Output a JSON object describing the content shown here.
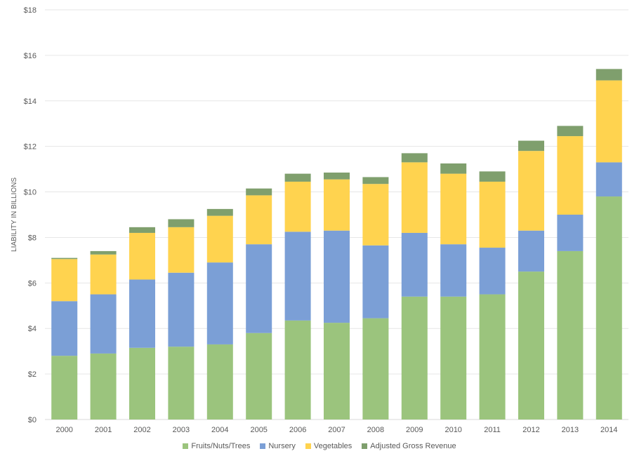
{
  "chart_data": {
    "type": "bar",
    "stacked": true,
    "title": "",
    "xlabel": "",
    "ylabel": "LIABILITY IN BILLIONS",
    "ylim": [
      0,
      18
    ],
    "y_ticks": [
      0,
      2,
      4,
      6,
      8,
      10,
      12,
      14,
      16,
      18
    ],
    "y_tick_labels": [
      "$0",
      "$2",
      "$4",
      "$6",
      "$8",
      "$10",
      "$12",
      "$14",
      "$16",
      "$18"
    ],
    "grid": true,
    "legend_position": "bottom",
    "categories": [
      "2000",
      "2001",
      "2002",
      "2003",
      "2004",
      "2005",
      "2006",
      "2007",
      "2008",
      "2009",
      "2010",
      "2011",
      "2012",
      "2013",
      "2014"
    ],
    "series": [
      {
        "name": "Fruits/Nuts/Trees",
        "color": "#9BC47D",
        "values": [
          2.8,
          2.9,
          3.15,
          3.2,
          3.3,
          3.8,
          4.35,
          4.25,
          4.45,
          5.4,
          5.4,
          5.5,
          6.5,
          7.4,
          9.8
        ]
      },
      {
        "name": "Nursery",
        "color": "#7B9FD6",
        "values": [
          2.4,
          2.6,
          3.0,
          3.25,
          3.6,
          3.9,
          3.9,
          4.05,
          3.2,
          2.8,
          2.3,
          2.05,
          1.8,
          1.6,
          1.5
        ]
      },
      {
        "name": "Vegetables",
        "color": "#FFD34F",
        "values": [
          1.85,
          1.75,
          2.05,
          2.0,
          2.05,
          2.15,
          2.2,
          2.25,
          2.7,
          3.1,
          3.1,
          2.9,
          3.5,
          3.45,
          3.6
        ]
      },
      {
        "name": "Adjusted Gross Revenue",
        "color": "#7F9F6D",
        "values": [
          0.05,
          0.15,
          0.25,
          0.35,
          0.3,
          0.3,
          0.35,
          0.3,
          0.3,
          0.4,
          0.45,
          0.45,
          0.45,
          0.45,
          0.5
        ]
      }
    ]
  }
}
